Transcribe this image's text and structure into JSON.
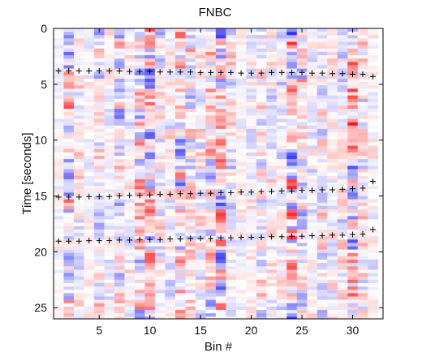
{
  "chart_data": {
    "type": "heatmap",
    "title": "FNBC",
    "xlabel": "Bin #",
    "ylabel": "Time [seconds]",
    "xlim": [
      0.5,
      33
    ],
    "ylim": [
      0,
      26
    ],
    "y_reversed": true,
    "x_ticks": [
      5,
      10,
      15,
      20,
      25,
      30
    ],
    "y_ticks": [
      0,
      5,
      10,
      15,
      20,
      25
    ],
    "colormap": [
      "#1a1aff",
      "#ffffff",
      "#ff1a1a"
    ],
    "colormap_range": [
      -1,
      1
    ],
    "n_bins": 32,
    "time_step": 0.3,
    "bin_amplitude": [
      0.15,
      0.8,
      0.35,
      0.2,
      0.5,
      0.25,
      0.6,
      0.3,
      0.7,
      0.85,
      0.45,
      0.3,
      0.75,
      0.5,
      0.35,
      0.6,
      0.85,
      0.4,
      0.2,
      0.3,
      0.5,
      0.35,
      0.4,
      0.95,
      0.55,
      0.35,
      0.45,
      0.3,
      0.4,
      0.95,
      0.5,
      0.25
    ],
    "series": [
      {
        "x": [
          1,
          2,
          3,
          4,
          5,
          6,
          7,
          8,
          9,
          10,
          11,
          12,
          13,
          14,
          15,
          16,
          17,
          18,
          19,
          20,
          21,
          22,
          23,
          24,
          25,
          26,
          27,
          28,
          29,
          30,
          31,
          32
        ],
        "y": [
          3.8,
          3.8,
          3.8,
          3.8,
          3.8,
          3.8,
          3.8,
          3.85,
          3.85,
          3.85,
          3.9,
          3.9,
          3.9,
          3.9,
          3.95,
          3.95,
          3.95,
          3.95,
          4.0,
          4.0,
          4.0,
          3.95,
          3.95,
          3.95,
          3.95,
          4.0,
          4.0,
          4.05,
          4.05,
          4.1,
          4.1,
          4.3
        ],
        "marker": "+"
      },
      {
        "x": [
          1,
          2,
          3,
          4,
          5,
          6,
          7,
          8,
          9,
          10,
          11,
          12,
          13,
          14,
          15,
          16,
          17,
          18,
          19,
          20,
          21,
          22,
          23,
          24,
          25,
          26,
          27,
          28,
          29,
          30,
          31,
          32
        ],
        "y": [
          15.1,
          15.1,
          15.1,
          15.05,
          15.05,
          15.05,
          15.0,
          14.95,
          14.95,
          14.9,
          14.85,
          14.85,
          14.8,
          14.8,
          14.75,
          14.75,
          14.7,
          14.7,
          14.65,
          14.65,
          14.6,
          14.6,
          14.55,
          14.55,
          14.5,
          14.5,
          14.45,
          14.45,
          14.4,
          14.35,
          14.3,
          13.7
        ],
        "marker": "+"
      },
      {
        "x": [
          1,
          2,
          3,
          4,
          5,
          6,
          7,
          8,
          9,
          10,
          11,
          12,
          13,
          14,
          15,
          16,
          17,
          18,
          19,
          20,
          21,
          22,
          23,
          24,
          25,
          26,
          27,
          28,
          29,
          30,
          31,
          32
        ],
        "y": [
          19.05,
          19.05,
          19.05,
          19.0,
          19.0,
          19.0,
          18.95,
          18.95,
          18.9,
          18.9,
          18.9,
          18.85,
          18.85,
          18.8,
          18.8,
          18.8,
          18.75,
          18.75,
          18.7,
          18.7,
          18.7,
          18.65,
          18.65,
          18.6,
          18.6,
          18.55,
          18.55,
          18.5,
          18.5,
          18.45,
          18.4,
          18.0
        ],
        "marker": "+"
      }
    ]
  }
}
